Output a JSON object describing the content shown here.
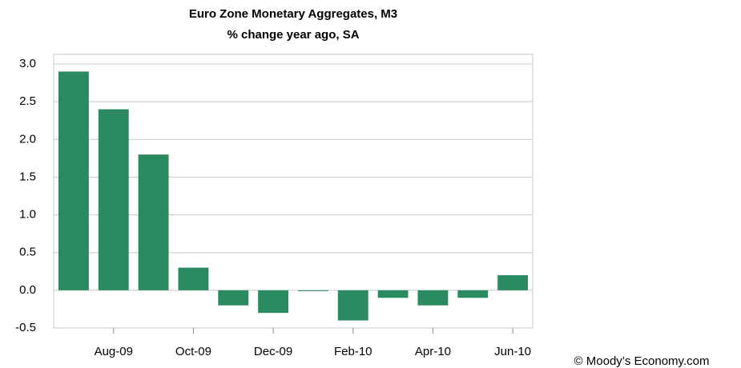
{
  "chart_data": {
    "type": "bar",
    "title": "Euro Zone Monetary Aggregates, M3",
    "subtitle": "% change year ago, SA",
    "categories": [
      null,
      "Aug-09",
      null,
      "Oct-09",
      null,
      "Dec-09",
      null,
      "Feb-10",
      null,
      "Apr-10",
      null,
      "Jun-10"
    ],
    "values": [
      2.9,
      2.4,
      1.8,
      0.3,
      -0.2,
      -0.3,
      0,
      -0.4,
      -0.1,
      -0.2,
      -0.1,
      0.2
    ],
    "color": "#2b8a5f",
    "ylim": [
      -0.5,
      3.0
    ],
    "yticks": [
      {
        "value": -0.5,
        "label": "-0.5"
      },
      {
        "value": 0,
        "label": "0.0"
      },
      {
        "value": 0.5,
        "label": "0.5"
      },
      {
        "value": 1,
        "label": "1.0"
      },
      {
        "value": 1.5,
        "label": "1.5"
      },
      {
        "value": 2,
        "label": "2.0"
      },
      {
        "value": 2.5,
        "label": "2.5"
      },
      {
        "value": 3,
        "label": "3.0"
      }
    ],
    "grid": true,
    "source": "© Moody’s Economy.com"
  }
}
